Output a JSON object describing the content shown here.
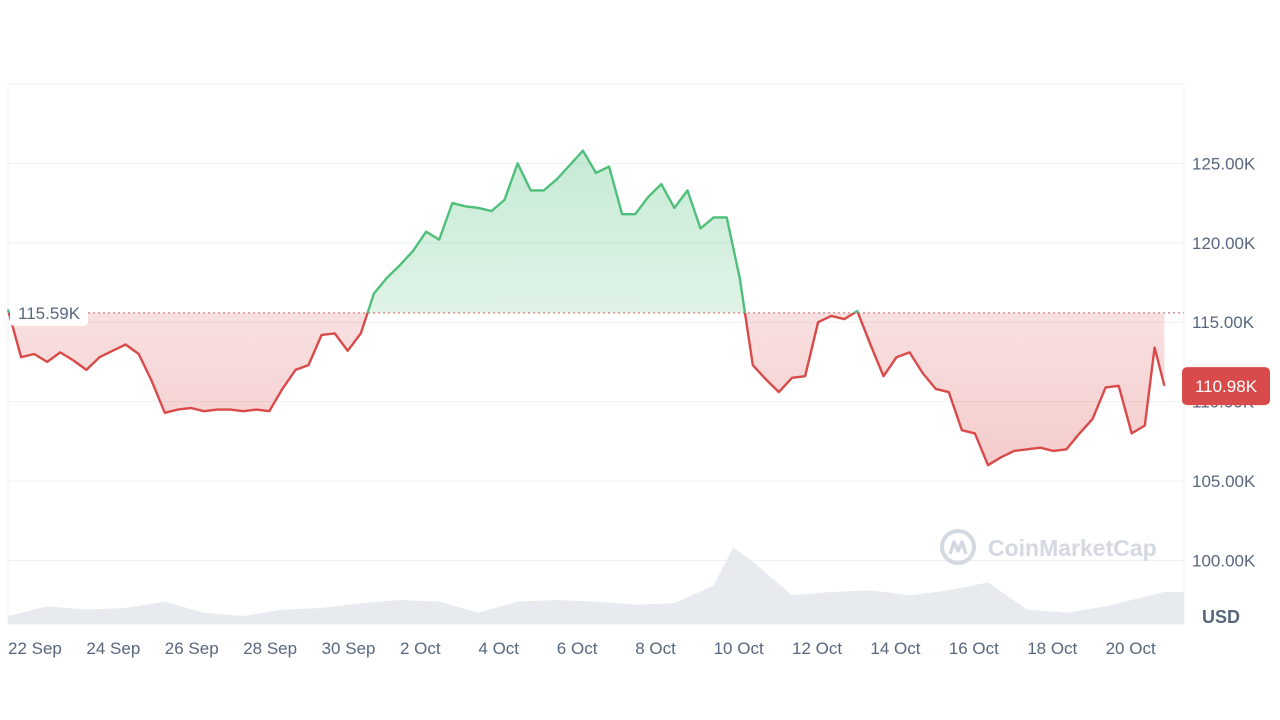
{
  "watermark": {
    "brand": "CoinMarketCap",
    "icon": "coinmarketcap-logo-icon"
  },
  "colors": {
    "up": "#4fbf7a",
    "down": "#d94a4a",
    "grid": "#eef0f3",
    "text": "#58667e",
    "volume": "#e7eaef",
    "reference": "#d97a7a"
  },
  "chart_data": {
    "type": "line",
    "currency_label": "USD",
    "reference_value": 115590,
    "reference_label": "115.59K",
    "current_price": 110980,
    "current_price_label": "110.98K",
    "y_range": [
      96000,
      130000
    ],
    "y_ticks": [
      {
        "value": 100000,
        "label": "100.00K"
      },
      {
        "value": 105000,
        "label": "105.00K"
      },
      {
        "value": 110000,
        "label": "110.00K"
      },
      {
        "value": 115000,
        "label": "115.00K"
      },
      {
        "value": 120000,
        "label": "120.00K"
      },
      {
        "value": 125000,
        "label": "125.00K"
      }
    ],
    "x_range": [
      "2025-09-22",
      "2025-10-22"
    ],
    "x_ticks": [
      {
        "date": "2025-09-22",
        "label": "22 Sep"
      },
      {
        "date": "2025-09-24",
        "label": "24 Sep"
      },
      {
        "date": "2025-09-26",
        "label": "26 Sep"
      },
      {
        "date": "2025-09-28",
        "label": "28 Sep"
      },
      {
        "date": "2025-09-30",
        "label": "30 Sep"
      },
      {
        "date": "2025-10-02",
        "label": "2 Oct"
      },
      {
        "date": "2025-10-04",
        "label": "4 Oct"
      },
      {
        "date": "2025-10-06",
        "label": "6 Oct"
      },
      {
        "date": "2025-10-08",
        "label": "8 Oct"
      },
      {
        "date": "2025-10-10",
        "label": "10 Oct"
      },
      {
        "date": "2025-10-12",
        "label": "12 Oct"
      },
      {
        "date": "2025-10-14",
        "label": "14 Oct"
      },
      {
        "date": "2025-10-16",
        "label": "16 Oct"
      },
      {
        "date": "2025-10-18",
        "label": "18 Oct"
      },
      {
        "date": "2025-10-20",
        "label": "20 Oct"
      }
    ],
    "price_series": [
      [
        "2025-09-22",
        115800
      ],
      [
        "2025-09-22 08:00",
        112800
      ],
      [
        "2025-09-22 16:00",
        113000
      ],
      [
        "2025-09-23",
        112500
      ],
      [
        "2025-09-23 08:00",
        113100
      ],
      [
        "2025-09-23 16:00",
        112600
      ],
      [
        "2025-09-24",
        112000
      ],
      [
        "2025-09-24 08:00",
        112800
      ],
      [
        "2025-09-24 16:00",
        113200
      ],
      [
        "2025-09-25",
        113600
      ],
      [
        "2025-09-25 08:00",
        113000
      ],
      [
        "2025-09-25 16:00",
        111300
      ],
      [
        "2025-09-26",
        109300
      ],
      [
        "2025-09-26 08:00",
        109500
      ],
      [
        "2025-09-26 16:00",
        109600
      ],
      [
        "2025-09-27",
        109400
      ],
      [
        "2025-09-27 08:00",
        109500
      ],
      [
        "2025-09-27 16:00",
        109500
      ],
      [
        "2025-09-28",
        109400
      ],
      [
        "2025-09-28 08:00",
        109500
      ],
      [
        "2025-09-28 16:00",
        109400
      ],
      [
        "2025-09-29",
        110800
      ],
      [
        "2025-09-29 08:00",
        112000
      ],
      [
        "2025-09-29 16:00",
        112300
      ],
      [
        "2025-09-30",
        114200
      ],
      [
        "2025-09-30 08:00",
        114300
      ],
      [
        "2025-09-30 16:00",
        113200
      ],
      [
        "2025-10-01",
        114300
      ],
      [
        "2025-10-01 08:00",
        116800
      ],
      [
        "2025-10-01 16:00",
        117800
      ],
      [
        "2025-10-02",
        118600
      ],
      [
        "2025-10-02 08:00",
        119500
      ],
      [
        "2025-10-02 16:00",
        120700
      ],
      [
        "2025-10-03",
        120200
      ],
      [
        "2025-10-03 08:00",
        122500
      ],
      [
        "2025-10-03 16:00",
        122300
      ],
      [
        "2025-10-04",
        122200
      ],
      [
        "2025-10-04 08:00",
        122000
      ],
      [
        "2025-10-04 16:00",
        122700
      ],
      [
        "2025-10-05",
        125000
      ],
      [
        "2025-10-05 08:00",
        123300
      ],
      [
        "2025-10-05 16:00",
        123300
      ],
      [
        "2025-10-06",
        124000
      ],
      [
        "2025-10-06 08:00",
        124900
      ],
      [
        "2025-10-06 16:00",
        125800
      ],
      [
        "2025-10-07",
        124400
      ],
      [
        "2025-10-07 08:00",
        124800
      ],
      [
        "2025-10-07 16:00",
        121800
      ],
      [
        "2025-10-08",
        121800
      ],
      [
        "2025-10-08 08:00",
        122900
      ],
      [
        "2025-10-08 16:00",
        123700
      ],
      [
        "2025-10-09",
        122200
      ],
      [
        "2025-10-09 08:00",
        123300
      ],
      [
        "2025-10-09 16:00",
        120900
      ],
      [
        "2025-10-10",
        121600
      ],
      [
        "2025-10-10 08:00",
        121600
      ],
      [
        "2025-10-10 16:00",
        117800
      ],
      [
        "2025-10-11",
        112300
      ],
      [
        "2025-10-11 08:00",
        111400
      ],
      [
        "2025-10-11 16:00",
        110600
      ],
      [
        "2025-10-12",
        111500
      ],
      [
        "2025-10-12 08:00",
        111600
      ],
      [
        "2025-10-12 16:00",
        115000
      ],
      [
        "2025-10-13",
        115400
      ],
      [
        "2025-10-13 08:00",
        115200
      ],
      [
        "2025-10-13 16:00",
        115700
      ],
      [
        "2025-10-14",
        113600
      ],
      [
        "2025-10-14 08:00",
        111600
      ],
      [
        "2025-10-14 16:00",
        112800
      ],
      [
        "2025-10-15",
        113100
      ],
      [
        "2025-10-15 08:00",
        111800
      ],
      [
        "2025-10-15 16:00",
        110800
      ],
      [
        "2025-10-16",
        110600
      ],
      [
        "2025-10-16 08:00",
        108200
      ],
      [
        "2025-10-16 16:00",
        108000
      ],
      [
        "2025-10-17",
        106000
      ],
      [
        "2025-10-17 08:00",
        106500
      ],
      [
        "2025-10-17 16:00",
        106900
      ],
      [
        "2025-10-18",
        107000
      ],
      [
        "2025-10-18 08:00",
        107100
      ],
      [
        "2025-10-18 16:00",
        106900
      ],
      [
        "2025-10-19",
        107000
      ],
      [
        "2025-10-19 08:00",
        108000
      ],
      [
        "2025-10-19 16:00",
        108900
      ],
      [
        "2025-10-20",
        110900
      ],
      [
        "2025-10-20 08:00",
        111000
      ],
      [
        "2025-10-20 16:00",
        108000
      ],
      [
        "2025-10-21",
        108500
      ],
      [
        "2025-10-21 06:00",
        113400
      ],
      [
        "2025-10-21 12:00",
        111000
      ]
    ],
    "volume_range": [
      0,
      100
    ],
    "volume_series": [
      [
        "2025-09-22",
        10
      ],
      [
        "2025-09-23",
        22
      ],
      [
        "2025-09-24",
        18
      ],
      [
        "2025-09-25",
        20
      ],
      [
        "2025-09-26",
        28
      ],
      [
        "2025-09-27",
        14
      ],
      [
        "2025-09-28",
        10
      ],
      [
        "2025-09-29",
        18
      ],
      [
        "2025-09-30",
        20
      ],
      [
        "2025-10-01",
        26
      ],
      [
        "2025-10-02",
        30
      ],
      [
        "2025-10-03",
        28
      ],
      [
        "2025-10-04",
        14
      ],
      [
        "2025-10-05",
        28
      ],
      [
        "2025-10-06",
        30
      ],
      [
        "2025-10-07",
        28
      ],
      [
        "2025-10-08",
        24
      ],
      [
        "2025-10-09",
        26
      ],
      [
        "2025-10-10",
        48
      ],
      [
        "2025-10-10 12:00",
        96
      ],
      [
        "2025-10-11",
        78
      ],
      [
        "2025-10-12",
        36
      ],
      [
        "2025-10-13",
        40
      ],
      [
        "2025-10-14",
        42
      ],
      [
        "2025-10-15",
        36
      ],
      [
        "2025-10-16",
        42
      ],
      [
        "2025-10-17",
        52
      ],
      [
        "2025-10-18",
        18
      ],
      [
        "2025-10-19",
        14
      ],
      [
        "2025-10-20",
        22
      ],
      [
        "2025-10-21",
        34
      ],
      [
        "2025-10-21 12:00",
        40
      ]
    ]
  }
}
